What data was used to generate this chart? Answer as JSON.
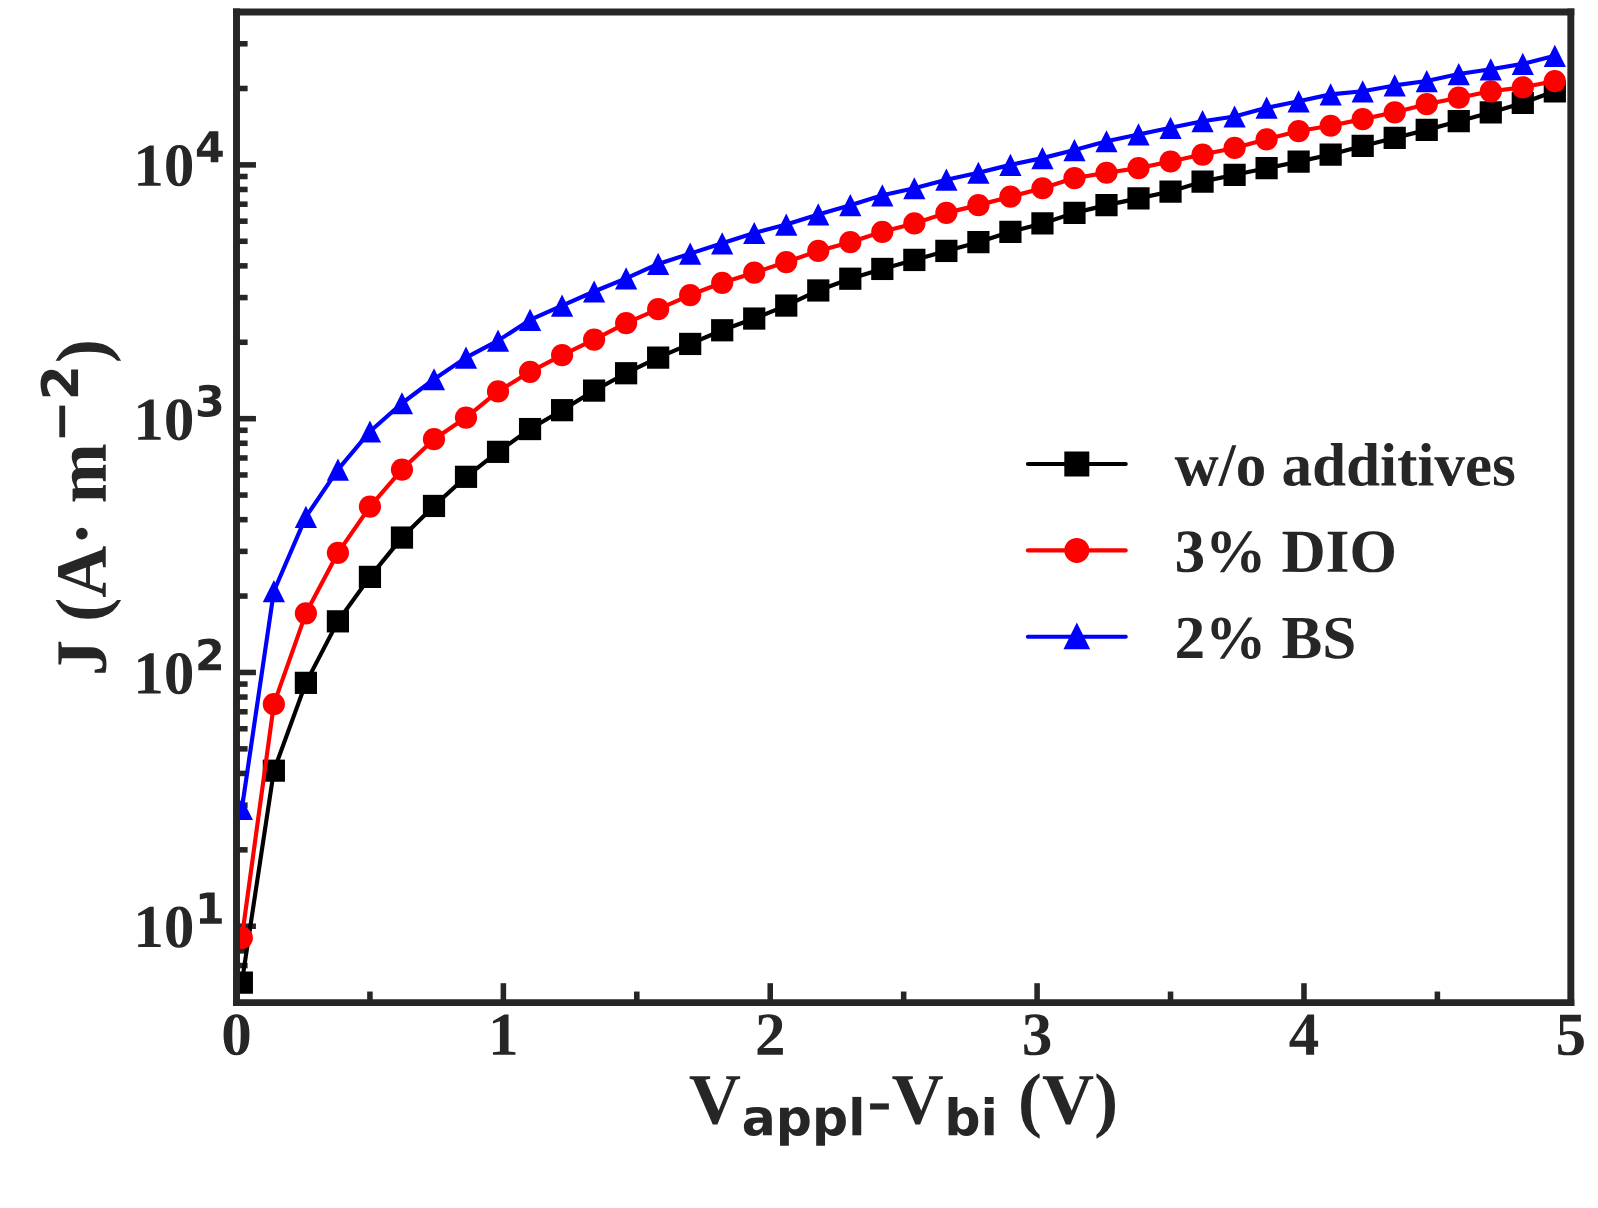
{
  "chart_data": {
    "type": "line",
    "xlabel": "V$_{appl}$-V$_{bi}$ (V)",
    "ylabel": "J (A· m$^{−2}$)",
    "x": [
      0.02,
      0.14,
      0.26,
      0.38,
      0.5,
      0.62,
      0.74,
      0.86,
      0.98,
      1.1,
      1.22,
      1.34,
      1.46,
      1.58,
      1.7,
      1.82,
      1.94,
      2.06,
      2.18,
      2.3,
      2.42,
      2.54,
      2.66,
      2.78,
      2.9,
      3.02,
      3.14,
      3.26,
      3.38,
      3.5,
      3.62,
      3.74,
      3.86,
      3.98,
      4.1,
      4.22,
      4.34,
      4.46,
      4.58,
      4.7,
      4.82,
      4.94
    ],
    "series": [
      {
        "name": "w/o additives",
        "color": "#000000",
        "marker": "square",
        "values": [
          6,
          41,
          91,
          159,
          238,
          340,
          453,
          590,
          740,
          910,
          1080,
          1290,
          1510,
          1740,
          1970,
          2230,
          2480,
          2790,
          3200,
          3560,
          3890,
          4220,
          4580,
          4960,
          5450,
          5880,
          6470,
          6940,
          7380,
          7850,
          8590,
          9140,
          9700,
          10300,
          10980,
          11880,
          12770,
          13740,
          14870,
          16100,
          17530,
          19500
        ]
      },
      {
        "name": "3% DIO",
        "color": "#ff0000",
        "marker": "circle",
        "values": [
          9,
          75,
          171,
          296,
          450,
          630,
          830,
          1010,
          1280,
          1530,
          1780,
          2050,
          2380,
          2700,
          3070,
          3430,
          3760,
          4140,
          4580,
          4960,
          5450,
          5880,
          6470,
          6940,
          7490,
          8090,
          8870,
          9310,
          9710,
          10310,
          10980,
          11660,
          12610,
          13590,
          14260,
          15150,
          16110,
          17350,
          18400,
          19500,
          20200,
          21400
        ]
      },
      {
        "name": "2% BS",
        "color": "#0000ff",
        "marker": "triangle",
        "values": [
          29,
          209,
          410,
          630,
          890,
          1150,
          1430,
          1740,
          2030,
          2450,
          2790,
          3170,
          3570,
          4070,
          4470,
          4910,
          5390,
          5820,
          6380,
          6940,
          7590,
          8090,
          8740,
          9310,
          10000,
          10630,
          11440,
          12390,
          13180,
          14000,
          14860,
          15510,
          16800,
          17800,
          18960,
          19500,
          20560,
          21400,
          22800,
          23800,
          25000,
          26900
        ]
      }
    ],
    "log": "y",
    "xlim": [
      0,
      5
    ],
    "xticks": [
      0,
      1,
      2,
      3,
      4,
      5
    ],
    "ylim": [
      5,
      40000
    ],
    "yticks": [
      {
        "value": 10,
        "label": "10$^{1}$"
      },
      {
        "value": 100,
        "label": "10$^{2}$"
      },
      {
        "value": 1000,
        "label": "10$^{3}$"
      },
      {
        "value": 10000,
        "label": "10$^{4}$"
      }
    ],
    "grid": false,
    "legend": "right",
    "line_style": "solid"
  }
}
